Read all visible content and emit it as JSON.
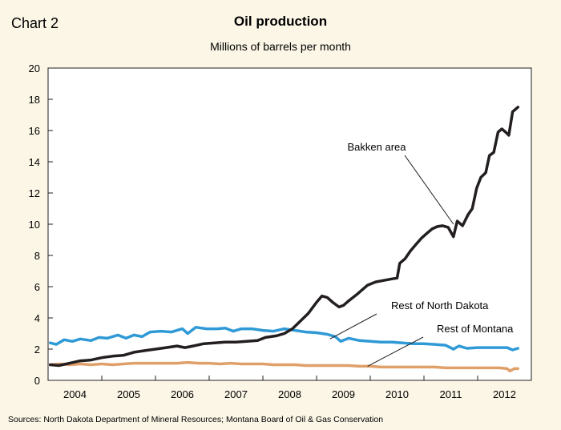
{
  "chart_label": "Chart 2",
  "chart_data": {
    "type": "line",
    "title": "Oil production",
    "subtitle": "Millions of barrels per month",
    "xlabel": "",
    "ylabel": "",
    "ylim": [
      0,
      20
    ],
    "yticks": [
      0,
      2,
      4,
      6,
      8,
      10,
      12,
      14,
      16,
      18,
      20
    ],
    "xlim": [
      2003.5,
      2012.5
    ],
    "xticks": [
      "2004",
      "2005",
      "2006",
      "2007",
      "2008",
      "2009",
      "2010",
      "2011",
      "2012"
    ],
    "grid": false,
    "source": "Sources: North Dakota Department of Mineral Resources; Montana Board of Oil & Gas Conservation",
    "series": [
      {
        "name": "Bakken area",
        "color": "#231f20",
        "points": [
          [
            2003.54,
            1.0
          ],
          [
            2003.7,
            0.95
          ],
          [
            2003.9,
            1.1
          ],
          [
            2004.1,
            1.25
          ],
          [
            2004.3,
            1.3
          ],
          [
            2004.5,
            1.45
          ],
          [
            2004.7,
            1.55
          ],
          [
            2004.9,
            1.6
          ],
          [
            2005.1,
            1.8
          ],
          [
            2005.3,
            1.9
          ],
          [
            2005.5,
            2.0
          ],
          [
            2005.7,
            2.1
          ],
          [
            2005.9,
            2.2
          ],
          [
            2006.05,
            2.1
          ],
          [
            2006.2,
            2.2
          ],
          [
            2006.4,
            2.35
          ],
          [
            2006.6,
            2.4
          ],
          [
            2006.8,
            2.45
          ],
          [
            2007.0,
            2.45
          ],
          [
            2007.2,
            2.5
          ],
          [
            2007.4,
            2.55
          ],
          [
            2007.55,
            2.75
          ],
          [
            2007.75,
            2.85
          ],
          [
            2007.9,
            3.0
          ],
          [
            2008.05,
            3.3
          ],
          [
            2008.2,
            3.8
          ],
          [
            2008.35,
            4.3
          ],
          [
            2008.5,
            5.0
          ],
          [
            2008.6,
            5.4
          ],
          [
            2008.7,
            5.3
          ],
          [
            2008.8,
            5.0
          ],
          [
            2008.92,
            4.7
          ],
          [
            2009.0,
            4.8
          ],
          [
            2009.1,
            5.1
          ],
          [
            2009.25,
            5.5
          ],
          [
            2009.35,
            5.8
          ],
          [
            2009.45,
            6.1
          ],
          [
            2009.6,
            6.3
          ],
          [
            2009.75,
            6.4
          ],
          [
            2009.9,
            6.5
          ],
          [
            2010.0,
            6.55
          ],
          [
            2010.05,
            7.5
          ],
          [
            2010.15,
            7.8
          ],
          [
            2010.25,
            8.3
          ],
          [
            2010.35,
            8.7
          ],
          [
            2010.45,
            9.1
          ],
          [
            2010.55,
            9.4
          ],
          [
            2010.65,
            9.7
          ],
          [
            2010.75,
            9.85
          ],
          [
            2010.85,
            9.9
          ],
          [
            2010.95,
            9.8
          ],
          [
            2011.05,
            9.2
          ],
          [
            2011.12,
            10.2
          ],
          [
            2011.22,
            9.9
          ],
          [
            2011.32,
            10.6
          ],
          [
            2011.4,
            11.0
          ],
          [
            2011.48,
            12.3
          ],
          [
            2011.56,
            13.0
          ],
          [
            2011.65,
            13.3
          ],
          [
            2011.72,
            14.4
          ],
          [
            2011.8,
            14.6
          ],
          [
            2011.88,
            15.9
          ],
          [
            2011.95,
            16.1
          ],
          [
            2012.02,
            15.9
          ],
          [
            2012.08,
            15.7
          ],
          [
            2012.15,
            17.2
          ],
          [
            2012.25,
            17.5
          ]
        ]
      },
      {
        "name": "Rest of North Dakota",
        "color": "#2f9ad6",
        "points": [
          [
            2003.54,
            2.4
          ],
          [
            2003.65,
            2.3
          ],
          [
            2003.8,
            2.6
          ],
          [
            2003.95,
            2.5
          ],
          [
            2004.1,
            2.65
          ],
          [
            2004.3,
            2.55
          ],
          [
            2004.45,
            2.75
          ],
          [
            2004.6,
            2.7
          ],
          [
            2004.8,
            2.9
          ],
          [
            2004.95,
            2.7
          ],
          [
            2005.1,
            2.9
          ],
          [
            2005.25,
            2.8
          ],
          [
            2005.4,
            3.1
          ],
          [
            2005.6,
            3.15
          ],
          [
            2005.8,
            3.1
          ],
          [
            2006.0,
            3.3
          ],
          [
            2006.1,
            3.0
          ],
          [
            2006.25,
            3.4
          ],
          [
            2006.45,
            3.3
          ],
          [
            2006.65,
            3.3
          ],
          [
            2006.8,
            3.35
          ],
          [
            2006.95,
            3.15
          ],
          [
            2007.1,
            3.3
          ],
          [
            2007.3,
            3.3
          ],
          [
            2007.5,
            3.2
          ],
          [
            2007.7,
            3.15
          ],
          [
            2007.9,
            3.3
          ],
          [
            2008.1,
            3.2
          ],
          [
            2008.3,
            3.1
          ],
          [
            2008.5,
            3.05
          ],
          [
            2008.7,
            2.95
          ],
          [
            2008.85,
            2.8
          ],
          [
            2008.95,
            2.5
          ],
          [
            2009.1,
            2.7
          ],
          [
            2009.3,
            2.55
          ],
          [
            2009.5,
            2.5
          ],
          [
            2009.7,
            2.45
          ],
          [
            2009.9,
            2.45
          ],
          [
            2010.1,
            2.4
          ],
          [
            2010.3,
            2.35
          ],
          [
            2010.5,
            2.35
          ],
          [
            2010.7,
            2.3
          ],
          [
            2010.9,
            2.25
          ],
          [
            2011.05,
            2.0
          ],
          [
            2011.15,
            2.2
          ],
          [
            2011.3,
            2.05
          ],
          [
            2011.5,
            2.1
          ],
          [
            2011.7,
            2.1
          ],
          [
            2011.9,
            2.1
          ],
          [
            2012.05,
            2.1
          ],
          [
            2012.15,
            1.95
          ],
          [
            2012.25,
            2.05
          ]
        ]
      },
      {
        "name": "Rest of Montana",
        "color": "#e0a06a",
        "points": [
          [
            2003.54,
            1.0
          ],
          [
            2003.7,
            1.05
          ],
          [
            2003.9,
            1.0
          ],
          [
            2004.1,
            1.05
          ],
          [
            2004.3,
            1.0
          ],
          [
            2004.5,
            1.05
          ],
          [
            2004.7,
            1.0
          ],
          [
            2004.9,
            1.05
          ],
          [
            2005.1,
            1.1
          ],
          [
            2005.3,
            1.1
          ],
          [
            2005.5,
            1.1
          ],
          [
            2005.7,
            1.1
          ],
          [
            2005.9,
            1.1
          ],
          [
            2006.1,
            1.15
          ],
          [
            2006.3,
            1.1
          ],
          [
            2006.5,
            1.1
          ],
          [
            2006.7,
            1.05
          ],
          [
            2006.9,
            1.1
          ],
          [
            2007.1,
            1.05
          ],
          [
            2007.3,
            1.05
          ],
          [
            2007.5,
            1.05
          ],
          [
            2007.7,
            1.0
          ],
          [
            2007.9,
            1.0
          ],
          [
            2008.1,
            1.0
          ],
          [
            2008.3,
            0.95
          ],
          [
            2008.5,
            0.95
          ],
          [
            2008.7,
            0.95
          ],
          [
            2008.9,
            0.95
          ],
          [
            2009.1,
            0.95
          ],
          [
            2009.3,
            0.9
          ],
          [
            2009.5,
            0.9
          ],
          [
            2009.7,
            0.85
          ],
          [
            2009.9,
            0.85
          ],
          [
            2010.1,
            0.85
          ],
          [
            2010.3,
            0.85
          ],
          [
            2010.5,
            0.85
          ],
          [
            2010.7,
            0.85
          ],
          [
            2010.9,
            0.8
          ],
          [
            2011.1,
            0.8
          ],
          [
            2011.3,
            0.8
          ],
          [
            2011.5,
            0.8
          ],
          [
            2011.7,
            0.8
          ],
          [
            2011.9,
            0.8
          ],
          [
            2012.05,
            0.75
          ],
          [
            2012.1,
            0.6
          ],
          [
            2012.18,
            0.75
          ],
          [
            2012.25,
            0.75
          ]
        ]
      }
    ],
    "annotations": [
      {
        "text": "Bakken area",
        "series": "Bakken area",
        "point": [
          2011.05,
          10.0
        ]
      },
      {
        "text": "Rest of North Dakota",
        "series": "Rest of North Dakota",
        "point": [
          2008.75,
          2.65
        ]
      },
      {
        "text": "Rest of Montana",
        "series": "Rest of Montana",
        "point": [
          2009.45,
          0.9
        ]
      }
    ]
  }
}
